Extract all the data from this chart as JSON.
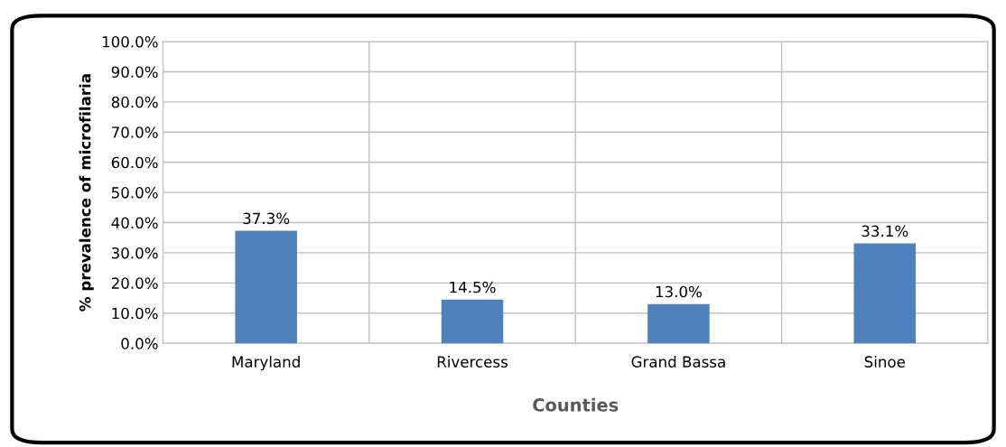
{
  "chart_data": {
    "type": "bar",
    "xlabel": "Counties",
    "ylabel": "% prevalence of microfilaria",
    "categories": [
      "Maryland",
      "Rivercess",
      "Grand Bassa",
      "Sinoe"
    ],
    "values": [
      37.3,
      14.5,
      13.0,
      33.1
    ],
    "color": "#4f81bd",
    "value_labels": [
      "37.3%",
      "14.5%",
      "13.0%",
      "33.1%"
    ],
    "ylim": [
      0,
      100
    ],
    "yticks": [
      {
        "value": 0,
        "label": "0.0%"
      },
      {
        "value": 10,
        "label": "10.0%"
      },
      {
        "value": 20,
        "label": "20.0%"
      },
      {
        "value": 30,
        "label": "30.0%"
      },
      {
        "value": 40,
        "label": "40.0%"
      },
      {
        "value": 50,
        "label": "50.0%"
      },
      {
        "value": 60,
        "label": "60.0%"
      },
      {
        "value": 70,
        "label": "70.0%"
      },
      {
        "value": 80,
        "label": "80.0%"
      },
      {
        "value": 90,
        "label": "90.0%"
      },
      {
        "value": 100,
        "label": "100.0%"
      }
    ],
    "grid": true
  }
}
